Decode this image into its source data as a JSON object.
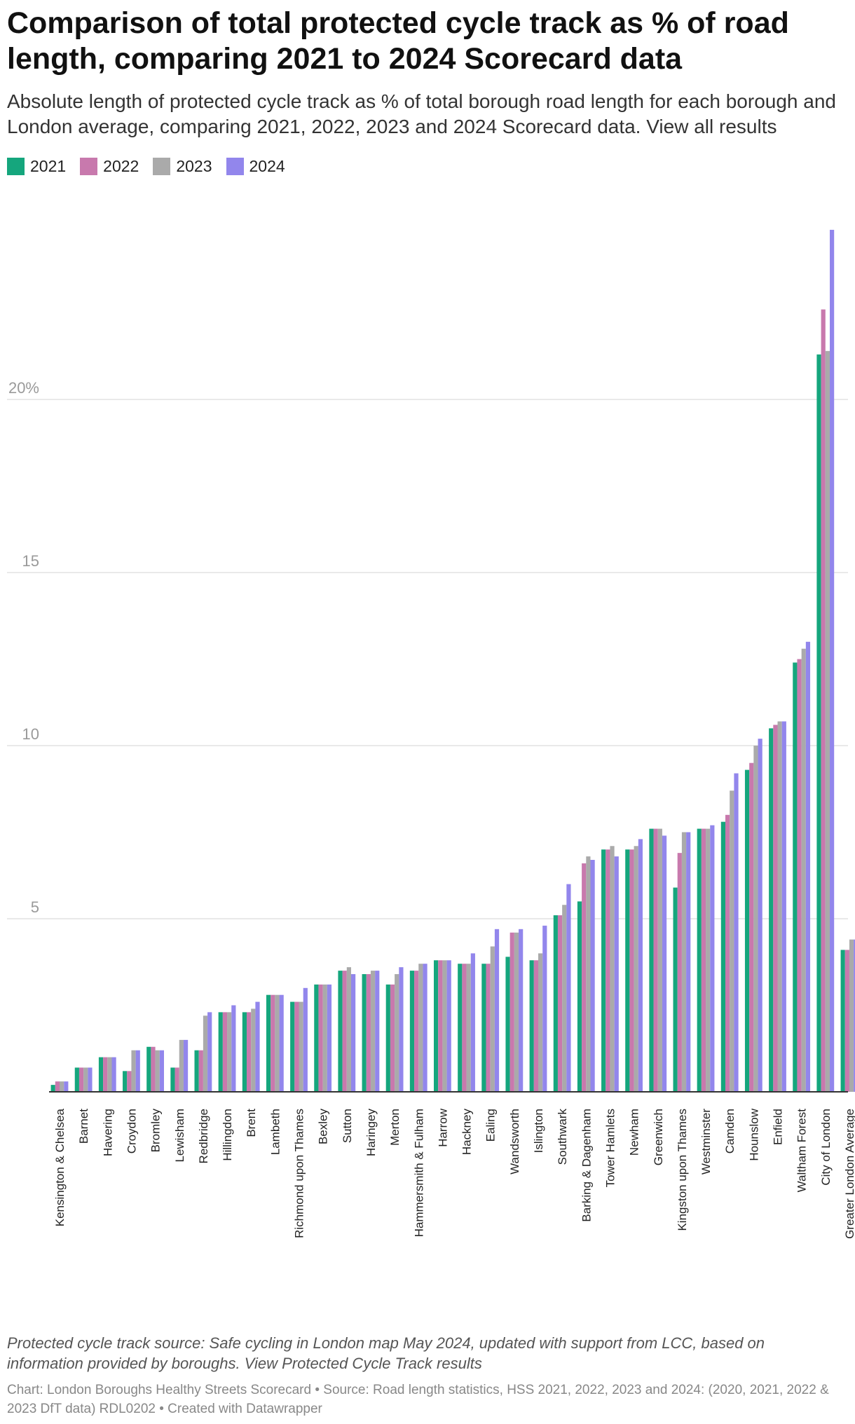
{
  "title": "Comparison of total protected cycle track as % of road length, comparing 2021 to 2024 Scorecard data",
  "subtitle": "Absolute length of protected cycle track as % of total borough road length for each borough and London average, comparing 2021, 2022, 2023 and 2024 Scorecard data. View all results",
  "note": "Protected cycle track source: Safe cycling in London map May 2024, updated with support from LCC, based on information provided by boroughs. View Protected Cycle Track results",
  "footer": "Chart: London Boroughs Healthy Streets Scorecard • Source: Road length statistics, HSS 2021, 2022, 2023 and 2024: (2020, 2021, 2022 & 2023 DfT data) RDL0202 • Created with Datawrapper",
  "legend": [
    {
      "label": "2021",
      "color": "#15a67d"
    },
    {
      "label": "2022",
      "color": "#c879ad"
    },
    {
      "label": "2023",
      "color": "#aaaaaa"
    },
    {
      "label": "2024",
      "color": "#9286ec"
    }
  ],
  "chart_data": {
    "type": "bar",
    "y_ticks": [
      "5",
      "10",
      "15",
      "20%"
    ],
    "y_tick_values": [
      5,
      10,
      15,
      20
    ],
    "ylim": [
      0,
      25
    ],
    "grid": true,
    "categories": [
      "Kensington & Chelsea",
      "Barnet",
      "Havering",
      "Croydon",
      "Bromley",
      "Lewisham",
      "Redbridge",
      "Hillingdon",
      "Brent",
      "Lambeth",
      "Richmond upon Thames",
      "Bexley",
      "Sutton",
      "Haringey",
      "Merton",
      "Hammersmith & Fulham",
      "Harrow",
      "Hackney",
      "Ealing",
      "Wandsworth",
      "Islington",
      "Southwark",
      "Barking & Dagenham",
      "Tower Hamlets",
      "Newham",
      "Greenwich",
      "Kingston upon Thames",
      "Westminster",
      "Camden",
      "Hounslow",
      "Enfield",
      "Waltham Forest",
      "City of London",
      "Greater London Average"
    ],
    "series": [
      {
        "name": "2021",
        "color": "#15a67d",
        "values": [
          0.2,
          0.7,
          1.0,
          0.6,
          1.3,
          0.7,
          1.2,
          2.3,
          2.3,
          2.8,
          2.6,
          3.1,
          3.5,
          3.4,
          3.1,
          3.5,
          3.8,
          3.7,
          3.7,
          3.9,
          3.8,
          5.1,
          5.5,
          7.0,
          7.0,
          7.6,
          5.9,
          7.6,
          7.8,
          9.3,
          10.5,
          12.4,
          21.3,
          4.1
        ]
      },
      {
        "name": "2022",
        "color": "#c879ad",
        "values": [
          0.3,
          0.7,
          1.0,
          0.6,
          1.3,
          0.7,
          1.2,
          2.3,
          2.3,
          2.8,
          2.6,
          3.1,
          3.5,
          3.4,
          3.1,
          3.5,
          3.8,
          3.7,
          3.7,
          4.6,
          3.8,
          5.1,
          6.6,
          7.0,
          7.0,
          7.6,
          6.9,
          7.6,
          8.0,
          9.5,
          10.6,
          12.5,
          22.6,
          4.1
        ]
      },
      {
        "name": "2023",
        "color": "#aaaaaa",
        "values": [
          0.3,
          0.7,
          1.0,
          1.2,
          1.2,
          1.5,
          2.2,
          2.3,
          2.4,
          2.8,
          2.6,
          3.1,
          3.6,
          3.5,
          3.4,
          3.7,
          3.8,
          3.7,
          4.2,
          4.6,
          4.0,
          5.4,
          6.8,
          7.1,
          7.1,
          7.6,
          7.5,
          7.6,
          8.7,
          10.0,
          10.7,
          12.8,
          21.4,
          4.4
        ]
      },
      {
        "name": "2024",
        "color": "#9286ec",
        "values": [
          0.3,
          0.7,
          1.0,
          1.2,
          1.2,
          1.5,
          2.3,
          2.5,
          2.6,
          2.8,
          3.0,
          3.1,
          3.4,
          3.5,
          3.6,
          3.7,
          3.8,
          4.0,
          4.7,
          4.7,
          4.8,
          6.0,
          6.7,
          6.8,
          7.3,
          7.4,
          7.5,
          7.7,
          9.2,
          10.2,
          10.7,
          13.0,
          24.9,
          4.4
        ]
      }
    ]
  }
}
